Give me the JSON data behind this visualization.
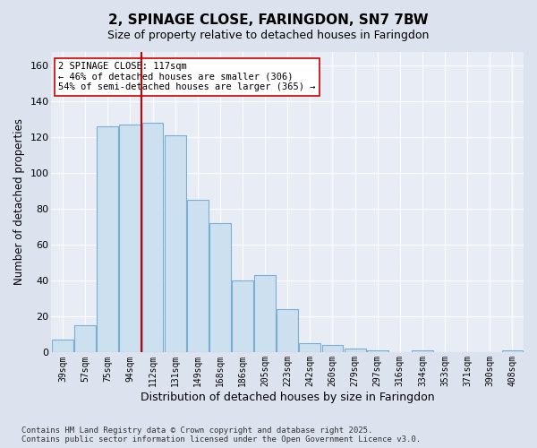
{
  "title": "2, SPINAGE CLOSE, FARINGDON, SN7 7BW",
  "subtitle": "Size of property relative to detached houses in Faringdon",
  "xlabel": "Distribution of detached houses by size in Faringdon",
  "ylabel": "Number of detached properties",
  "categories": [
    "39sqm",
    "57sqm",
    "75sqm",
    "94sqm",
    "112sqm",
    "131sqm",
    "149sqm",
    "168sqm",
    "186sqm",
    "205sqm",
    "223sqm",
    "242sqm",
    "260sqm",
    "279sqm",
    "297sqm",
    "316sqm",
    "334sqm",
    "353sqm",
    "371sqm",
    "390sqm",
    "408sqm"
  ],
  "bar_values": [
    7,
    15,
    126,
    127,
    128,
    121,
    85,
    72,
    40,
    43,
    24,
    5,
    4,
    2,
    1,
    0,
    1,
    0,
    0,
    0,
    1
  ],
  "bar_color": "#cce0f0",
  "bar_edge_color": "#7aafd4",
  "line_color": "#cc0000",
  "annotation_text": "2 SPINAGE CLOSE: 117sqm\n← 46% of detached houses are smaller (306)\n54% of semi-detached houses are larger (365) →",
  "annotation_box_color": "#ffffff",
  "annotation_box_edge": "#cc0000",
  "bg_color": "#dde3ee",
  "plot_bg_color": "#e8edf5",
  "grid_color": "#ffffff",
  "footnote": "Contains HM Land Registry data © Crown copyright and database right 2025.\nContains public sector information licensed under the Open Government Licence v3.0.",
  "ylim": [
    0,
    168
  ],
  "yticks": [
    0,
    20,
    40,
    60,
    80,
    100,
    120,
    140,
    160
  ]
}
